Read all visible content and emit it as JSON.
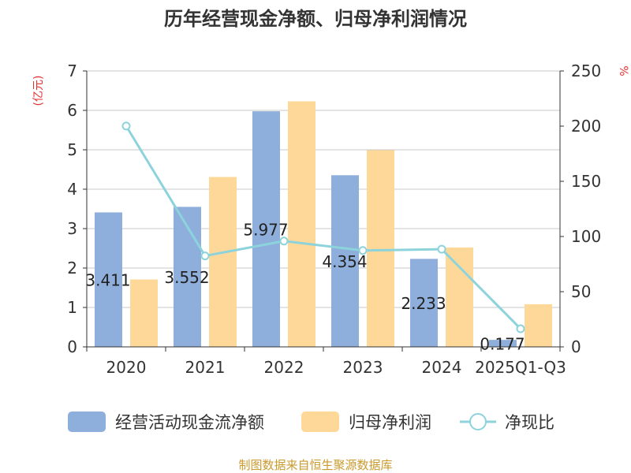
{
  "chart_data": {
    "type": "bar",
    "title": "历年经营现金净额、归母净利润情况",
    "left_axis_label": "(亿元)",
    "right_axis_label": "%",
    "categories": [
      "2020",
      "2021",
      "2022",
      "2023",
      "2024",
      "2025Q1-Q3"
    ],
    "ylim_left": [
      0,
      7
    ],
    "ylim_right": [
      0,
      250
    ],
    "left_ticks": [
      "0",
      "1",
      "2",
      "3",
      "4",
      "5",
      "6",
      "7"
    ],
    "right_ticks": [
      "0",
      "50",
      "100",
      "150",
      "200",
      "250"
    ],
    "grid": true,
    "legend_position": "bottom",
    "series": [
      {
        "name": "经营活动现金流净额",
        "type": "bar",
        "axis": "left",
        "color": "#8eaedb",
        "values": [
          3.411,
          3.552,
          5.977,
          4.354,
          2.233,
          0.177
        ],
        "labels": [
          "3.411",
          "3.552",
          "5.977",
          "4.354",
          "2.233",
          "0.177"
        ]
      },
      {
        "name": "归母净利润",
        "type": "bar",
        "axis": "left",
        "color": "#fed899",
        "values": [
          1.71,
          4.31,
          6.23,
          4.99,
          2.52,
          1.08
        ]
      },
      {
        "name": "净现比",
        "type": "line",
        "axis": "right",
        "color": "#8dd3dc",
        "values": [
          200.1,
          82.4,
          95.9,
          87.3,
          88.5,
          16.4
        ]
      }
    ]
  },
  "source_note": "制图数据来自恒生聚源数据库"
}
